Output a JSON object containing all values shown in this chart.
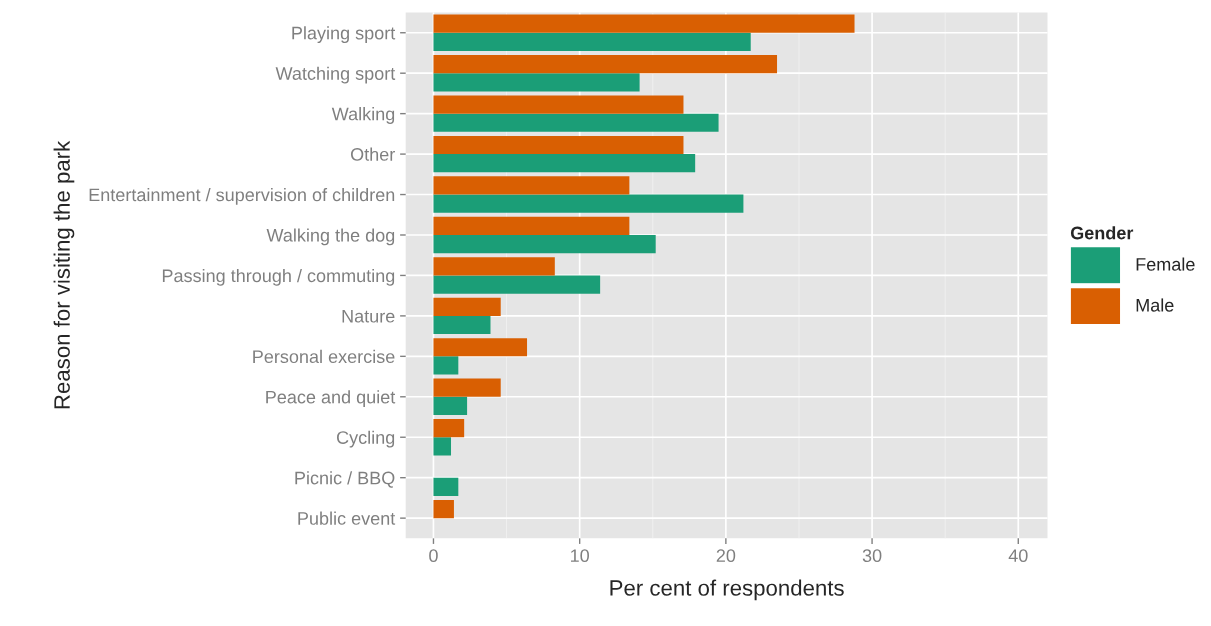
{
  "chart_data": {
    "type": "bar",
    "orientation": "horizontal",
    "xlabel": "Per cent of respondents",
    "ylabel": "Reason for visiting the park",
    "legend_title": "Gender",
    "legend": "right",
    "grid": true,
    "categories": [
      "Playing sport",
      "Watching sport",
      "Walking",
      "Other",
      "Entertainment / supervision of children",
      "Walking the dog",
      "Passing through / commuting",
      "Nature",
      "Personal exercise",
      "Peace and quiet",
      "Cycling",
      "Picnic / BBQ",
      "Public event"
    ],
    "series": [
      {
        "name": "Female",
        "color": "#1b9e77",
        "values": [
          21.7,
          14.1,
          19.5,
          17.9,
          21.2,
          15.2,
          11.4,
          3.9,
          1.7,
          2.3,
          1.2,
          1.7,
          null
        ]
      },
      {
        "name": "Male",
        "color": "#d95f02",
        "values": [
          28.8,
          23.5,
          17.1,
          17.1,
          13.4,
          13.4,
          8.3,
          4.6,
          6.4,
          4.6,
          2.1,
          null,
          1.4
        ]
      }
    ],
    "xlim": [
      -1.9,
      42
    ],
    "xticks": [
      0,
      10,
      20,
      30,
      40
    ]
  }
}
